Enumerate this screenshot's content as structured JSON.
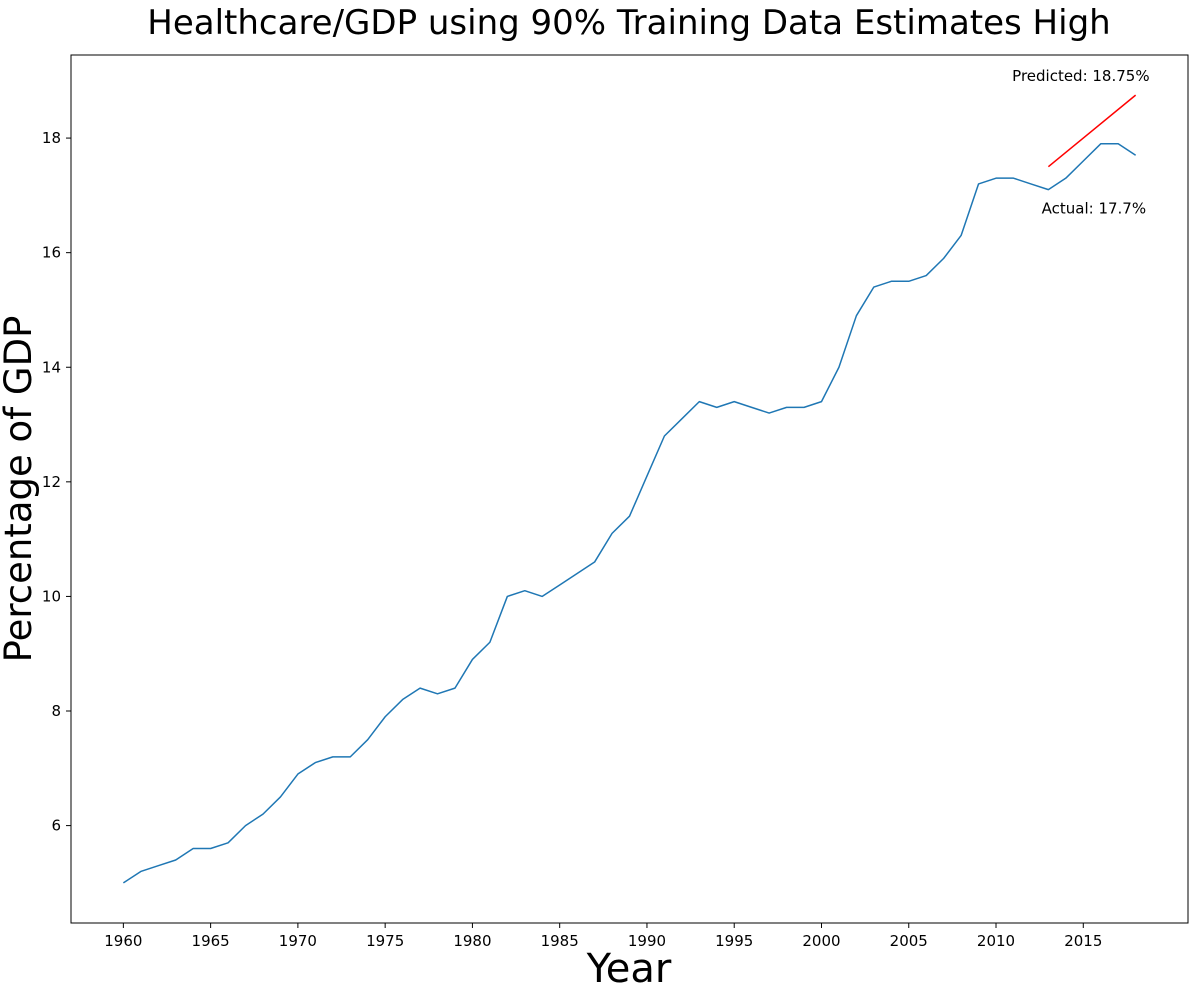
{
  "chart_data": {
    "type": "line",
    "title": "Healthcare/GDP using 90% Training Data Estimates High",
    "xlabel": "Year",
    "ylabel": "Percentage of GDP",
    "xlim": [
      1957,
      2021
    ],
    "ylim": [
      4.3,
      19.45
    ],
    "xticks": [
      1960,
      1965,
      1970,
      1975,
      1980,
      1985,
      1990,
      1995,
      2000,
      2005,
      2010,
      2015
    ],
    "yticks": [
      6,
      8,
      10,
      12,
      14,
      16,
      18
    ],
    "grid": false,
    "series": [
      {
        "color": "#1f77b4",
        "points": [
          [
            1960,
            5.0
          ],
          [
            1961,
            5.2
          ],
          [
            1962,
            5.3
          ],
          [
            1963,
            5.4
          ],
          [
            1964,
            5.6
          ],
          [
            1965,
            5.6
          ],
          [
            1966,
            5.7
          ],
          [
            1967,
            6.0
          ],
          [
            1968,
            6.2
          ],
          [
            1969,
            6.5
          ],
          [
            1970,
            6.9
          ],
          [
            1971,
            7.1
          ],
          [
            1972,
            7.2
          ],
          [
            1973,
            7.2
          ],
          [
            1974,
            7.5
          ],
          [
            1975,
            7.9
          ],
          [
            1976,
            8.2
          ],
          [
            1977,
            8.4
          ],
          [
            1978,
            8.3
          ],
          [
            1979,
            8.4
          ],
          [
            1980,
            8.9
          ],
          [
            1981,
            9.2
          ],
          [
            1982,
            10.0
          ],
          [
            1983,
            10.1
          ],
          [
            1984,
            10.0
          ],
          [
            1985,
            10.2
          ],
          [
            1986,
            10.4
          ],
          [
            1987,
            10.6
          ],
          [
            1988,
            11.1
          ],
          [
            1989,
            11.4
          ],
          [
            1990,
            12.1
          ],
          [
            1991,
            12.8
          ],
          [
            1992,
            13.1
          ],
          [
            1993,
            13.4
          ],
          [
            1994,
            13.3
          ],
          [
            1995,
            13.4
          ],
          [
            1996,
            13.3
          ],
          [
            1997,
            13.2
          ],
          [
            1998,
            13.3
          ],
          [
            1999,
            13.3
          ],
          [
            2000,
            13.4
          ],
          [
            2001,
            14.0
          ],
          [
            2002,
            14.9
          ],
          [
            2003,
            15.4
          ],
          [
            2004,
            15.5
          ],
          [
            2005,
            15.5
          ],
          [
            2006,
            15.6
          ],
          [
            2007,
            15.9
          ],
          [
            2008,
            16.3
          ],
          [
            2009,
            17.2
          ],
          [
            2010,
            17.3
          ],
          [
            2011,
            17.3
          ],
          [
            2012,
            17.2
          ],
          [
            2013,
            17.1
          ],
          [
            2014,
            17.3
          ],
          [
            2015,
            17.6
          ],
          [
            2016,
            17.9
          ],
          [
            2017,
            17.9
          ],
          [
            2018,
            17.7
          ]
        ]
      },
      {
        "color": "#ff0000",
        "points": [
          [
            2013,
            17.5
          ],
          [
            2018,
            18.75
          ]
        ]
      }
    ],
    "annotations": [
      {
        "text": "Predicted: 18.75%",
        "x": 2018.8,
        "y": 19.08,
        "anchor": "end"
      },
      {
        "text": "Actual: 17.7%",
        "x": 2018.6,
        "y": 16.77,
        "anchor": "end"
      }
    ]
  }
}
